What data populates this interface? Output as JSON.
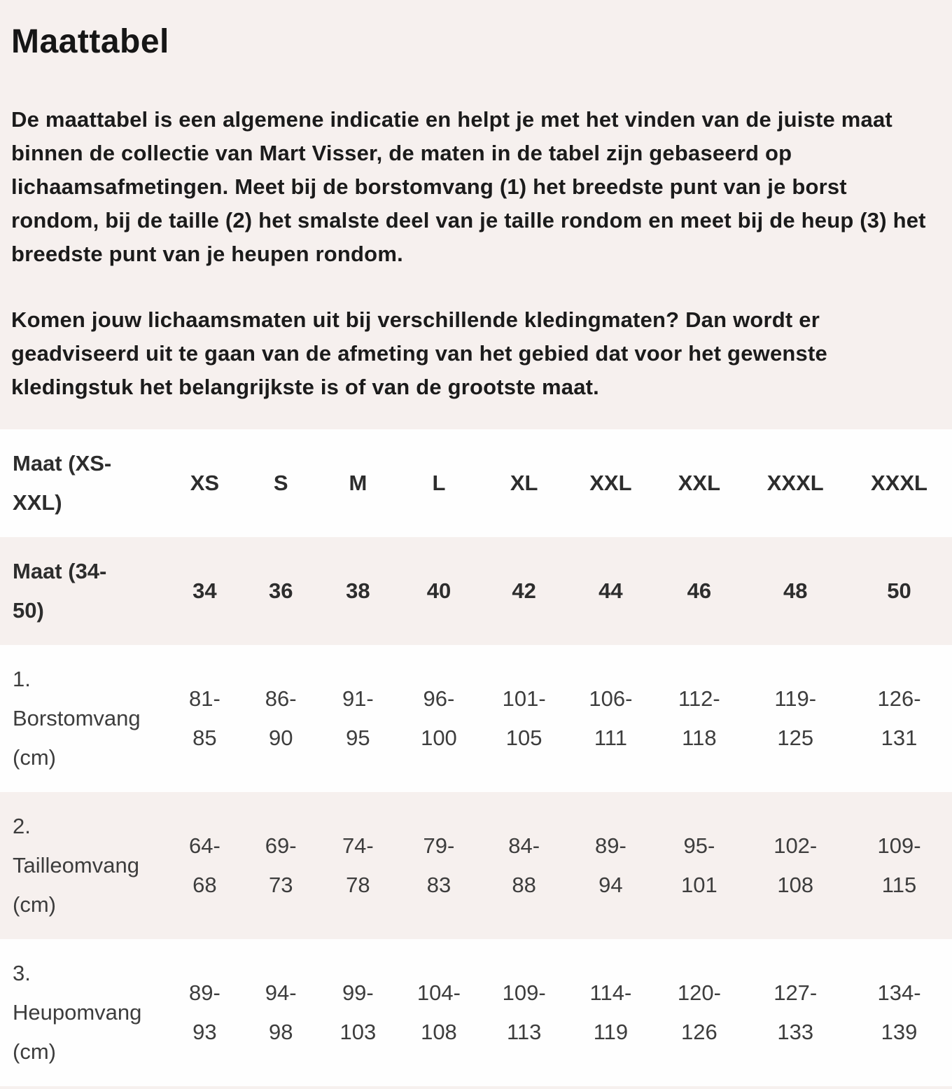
{
  "page": {
    "title": "Maattabel",
    "paragraphs": {
      "intro": "De maattabel is een algemene indicatie en helpt je met het vinden van de juiste maat binnen de collectie van Mart Visser, de maten in de tabel zijn gebaseerd op lichaamsafmetingen. Meet bij de borstomvang (1) het breedste punt van je borst rondom, bij de taille (2) het smalste deel van je taille rondom en meet bij de heup (3) het breedste punt van je heupen rondom.",
      "advice": "Komen jouw lichaamsmaten uit bij verschillende kledingmaten? Dan wordt er geadviseerd uit te gaan van de afmeting van het gebied dat voor het gewenste kledingstuk het belangrijkste is of van de grootste maat."
    }
  },
  "size_table": {
    "rows": [
      {
        "label": "Maat (XS-\nXXL)",
        "bold": true,
        "shaded": false,
        "values": [
          "XS",
          "S",
          "M",
          "L",
          "XL",
          "XXL",
          "XXL",
          "XXXL",
          "XXXL"
        ]
      },
      {
        "label": "Maat (34-\n50)",
        "bold": true,
        "shaded": true,
        "values": [
          "34",
          "36",
          "38",
          "40",
          "42",
          "44",
          "46",
          "48",
          "50"
        ]
      },
      {
        "label": "1.\nBorstomvang\n(cm)",
        "bold": false,
        "shaded": false,
        "values": [
          "81-\n85",
          "86-\n90",
          "91-\n95",
          "96-\n100",
          "101-\n105",
          "106-\n111",
          "112-\n118",
          "119-\n125",
          "126-\n131"
        ]
      },
      {
        "label": "2.\nTailleomvang\n(cm)",
        "bold": false,
        "shaded": true,
        "values": [
          "64-\n68",
          "69-\n73",
          "74-\n78",
          "79-\n83",
          "84-\n88",
          "89-\n94",
          "95-\n101",
          "102-\n108",
          "109-\n115"
        ]
      },
      {
        "label": "3.\nHeupomvang\n(cm)",
        "bold": false,
        "shaded": false,
        "values": [
          "89-\n93",
          "94-\n98",
          "99-\n103",
          "104-\n108",
          "109-\n113",
          "114-\n119",
          "120-\n126",
          "127-\n133",
          "134-\n139"
        ]
      }
    ]
  },
  "colors": {
    "page_background": "#f6f0ee",
    "row_white": "#fefefe",
    "heading_text": "#161616",
    "paragraph_text": "#1b1b1b",
    "table_text": "#3d3d3d",
    "table_bold_text": "#2d2d2d"
  }
}
